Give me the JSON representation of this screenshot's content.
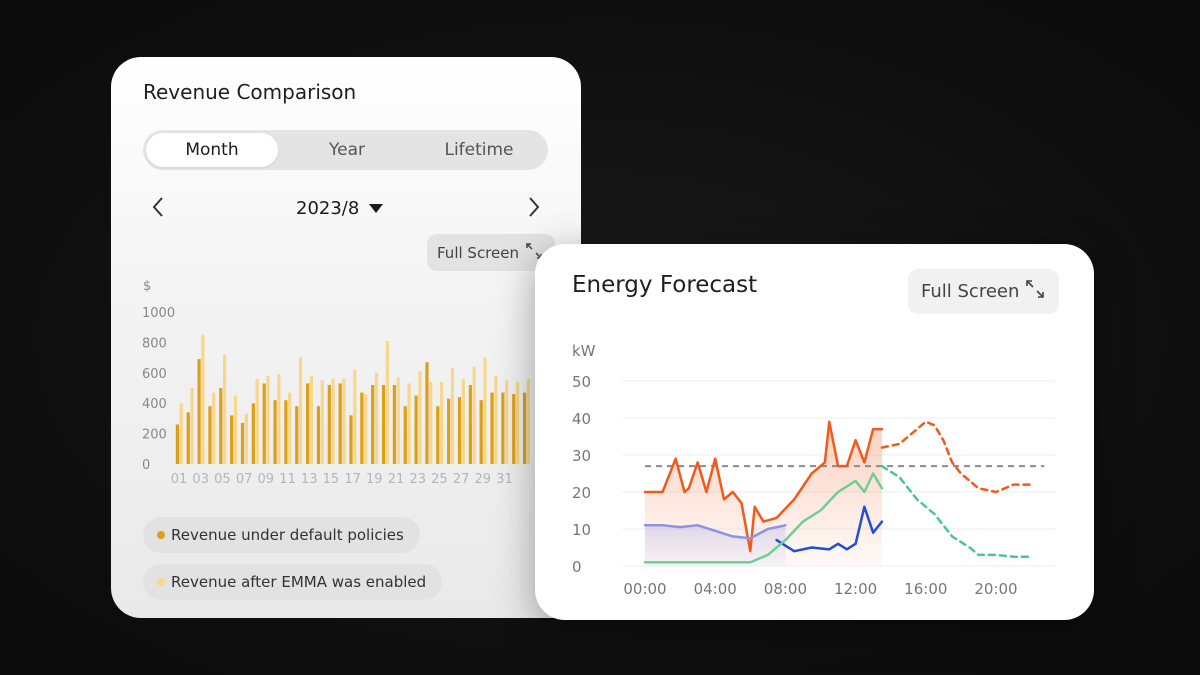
{
  "revenue_card": {
    "title": "Revenue Comparison",
    "tabs": [
      {
        "label": "Month",
        "active": true
      },
      {
        "label": "Year",
        "active": false
      },
      {
        "label": "Lifetime",
        "active": false
      }
    ],
    "date": "2023/8",
    "full_screen_label": "Full Screen",
    "icons": {
      "prev": "chevron-left-icon",
      "next": "chevron-right-icon",
      "dropdown": "caret-down-icon",
      "expand": "expand-icon"
    },
    "legend": [
      {
        "label": "Revenue under default policies",
        "color": "#dc9f1c"
      },
      {
        "label": "Revenue after EMMA was enabled",
        "color": "#f6d78c"
      }
    ]
  },
  "forecast_card": {
    "title": "Energy Forecast",
    "full_screen_label": "Full Screen",
    "icons": {
      "expand": "expand-icon"
    }
  },
  "chart_data": [
    {
      "type": "bar",
      "ylabel": "$",
      "ylim": [
        0,
        1000
      ],
      "yticks": [
        0,
        200,
        400,
        600,
        800,
        1000
      ],
      "xticklabels": [
        "01",
        "03",
        "05",
        "07",
        "09",
        "11",
        "13",
        "15",
        "17",
        "19",
        "21",
        "23",
        "25",
        "27",
        "29",
        "31"
      ],
      "categories": [
        "01",
        "02",
        "03",
        "04",
        "05",
        "06",
        "07",
        "08",
        "09",
        "10",
        "11",
        "12",
        "13",
        "14",
        "15",
        "16",
        "17",
        "18",
        "19",
        "20",
        "21",
        "22",
        "23",
        "24",
        "25",
        "26",
        "27",
        "28",
        "29",
        "30",
        "31",
        "32",
        "33"
      ],
      "series": [
        {
          "name": "Revenue under default policies",
          "color": "#dc9f1c",
          "values": [
            260,
            340,
            690,
            380,
            500,
            320,
            270,
            400,
            530,
            420,
            420,
            380,
            530,
            380,
            520,
            530,
            320,
            470,
            520,
            520,
            520,
            380,
            450,
            670,
            380,
            430,
            440,
            520,
            420,
            470,
            470,
            460,
            470
          ]
        },
        {
          "name": "Revenue after EMMA was enabled",
          "color": "#f6d78c",
          "values": [
            400,
            500,
            850,
            470,
            720,
            450,
            330,
            560,
            580,
            590,
            470,
            700,
            580,
            550,
            560,
            560,
            620,
            460,
            600,
            810,
            570,
            530,
            610,
            540,
            540,
            630,
            560,
            640,
            700,
            580,
            550,
            540,
            560
          ]
        }
      ],
      "colors": {
        "default": "#dc9f1c",
        "emma": "#f6d78c"
      }
    },
    {
      "type": "line",
      "ylabel": "kW",
      "ylim": [
        0,
        50
      ],
      "yticks": [
        0,
        10,
        20,
        30,
        40,
        50
      ],
      "xticklabels": [
        "00:00",
        "04:00",
        "08:00",
        "12:00",
        "16:00",
        "20:00"
      ],
      "xlim": [
        "00:00",
        "24:00"
      ],
      "grid": true,
      "threshold": {
        "value": 27,
        "style": "dashed",
        "color": "#8a8a8a"
      },
      "series": [
        {
          "style": "solid-area",
          "color": "#f25a1b",
          "x": [
            "00:00",
            "01:00",
            "01:45",
            "02:15",
            "02:30",
            "03:00",
            "03:30",
            "04:00",
            "04:30",
            "05:00",
            "05:30",
            "06:00",
            "06:15",
            "06:45",
            "07:30",
            "08:30",
            "09:30",
            "10:15",
            "10:30",
            "11:00",
            "11:30",
            "12:00",
            "12:30",
            "13:00",
            "13:30"
          ],
          "y": [
            20,
            20,
            29,
            20,
            21,
            28,
            20,
            29,
            18,
            20,
            17,
            4,
            16,
            12,
            13,
            18,
            25,
            28,
            39,
            27,
            27,
            34,
            28,
            37,
            37
          ]
        },
        {
          "style": "dashed",
          "color": "#f25a1b",
          "x": [
            "13:30",
            "14:30",
            "15:30",
            "16:00",
            "16:30",
            "17:00",
            "17:30",
            "18:00",
            "19:00",
            "20:00",
            "21:00",
            "22:00"
          ],
          "y": [
            32,
            33,
            37,
            39,
            38,
            34,
            28,
            25,
            21,
            20,
            22,
            22
          ]
        },
        {
          "style": "solid-area",
          "color": "#8c93e6",
          "x": [
            "00:00",
            "01:00",
            "02:00",
            "03:00",
            "04:00",
            "05:00",
            "06:00",
            "07:00",
            "08:00"
          ],
          "y": [
            11,
            11,
            10.5,
            11,
            9.5,
            8,
            7.5,
            10,
            11
          ]
        },
        {
          "style": "solid",
          "color": "#1e4fd6",
          "x": [
            "07:30",
            "08:30",
            "09:30",
            "10:30",
            "11:00",
            "11:30",
            "12:00",
            "12:30",
            "13:00",
            "13:30"
          ],
          "y": [
            7,
            4,
            5,
            4.5,
            6,
            4.5,
            6,
            16,
            9,
            12
          ]
        },
        {
          "style": "solid",
          "color": "#6fce91",
          "x": [
            "00:00",
            "02:00",
            "04:00",
            "06:00",
            "07:00",
            "08:00",
            "09:00",
            "10:00",
            "11:00",
            "12:00",
            "12:30",
            "13:00",
            "13:30"
          ],
          "y": [
            1,
            1,
            1,
            1,
            3,
            7,
            12,
            15,
            20,
            23,
            20,
            25,
            21
          ]
        },
        {
          "style": "dashed",
          "color": "#4cc49a",
          "x": [
            "13:30",
            "14:30",
            "15:30",
            "16:30",
            "17:30",
            "18:30",
            "19:00",
            "20:00",
            "21:00",
            "22:00"
          ],
          "y": [
            27,
            24,
            18,
            14,
            8,
            5,
            3,
            3,
            2.5,
            2.5
          ]
        }
      ]
    }
  ]
}
